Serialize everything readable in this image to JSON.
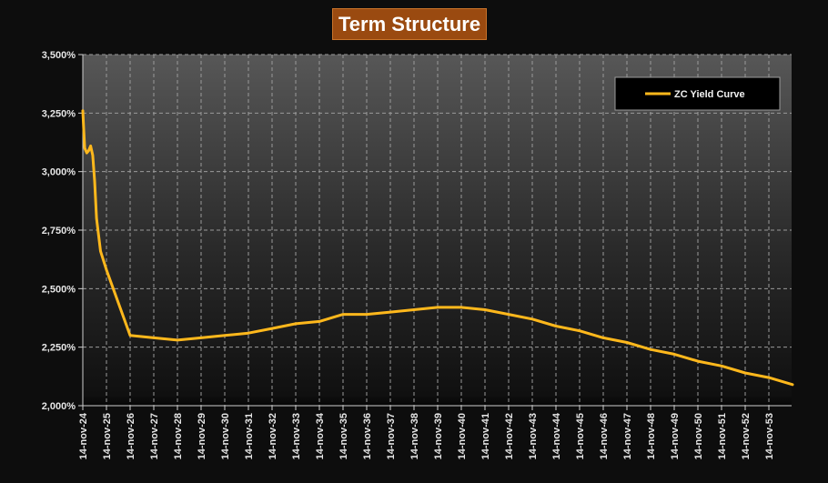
{
  "title": "Term Structure",
  "colors": {
    "series": "#ffb81c",
    "title_bg": "#9a4a10"
  },
  "chart_data": {
    "type": "line",
    "title": "Term Structure",
    "xlabel": "",
    "ylabel": "",
    "ylim": [
      0.02,
      0.035
    ],
    "y_ticks": [
      "2,000%",
      "2,250%",
      "2,500%",
      "2,750%",
      "3,000%",
      "3,250%",
      "3,500%"
    ],
    "x_ticks": [
      "14-nov-24",
      "14-nov-25",
      "14-nov-26",
      "14-nov-27",
      "14-nov-28",
      "14-nov-29",
      "14-nov-30",
      "14-nov-31",
      "14-nov-32",
      "14-nov-33",
      "14-nov-34",
      "14-nov-35",
      "14-nov-36",
      "14-nov-37",
      "14-nov-38",
      "14-nov-39",
      "14-nov-40",
      "14-nov-41",
      "14-nov-42",
      "14-nov-43",
      "14-nov-44",
      "14-nov-45",
      "14-nov-46",
      "14-nov-47",
      "14-nov-48",
      "14-nov-49",
      "14-nov-50",
      "14-nov-51",
      "14-nov-52",
      "14-nov-53"
    ],
    "grid": true,
    "legend_position": "top-right",
    "series": [
      {
        "name": "ZC Yield Curve",
        "x": [
          0,
          0.04,
          0.08,
          0.17,
          0.25,
          0.33,
          0.42,
          0.5,
          0.58,
          0.75,
          1.0,
          2.0,
          3.0,
          4.0,
          5.0,
          6.0,
          7.0,
          8.0,
          9.0,
          10.0,
          11.0,
          12.0,
          13.0,
          14.0,
          15.0,
          16.0,
          17.0,
          18.0,
          19.0,
          20.0,
          21.0,
          22.0,
          23.0,
          24.0,
          25.0,
          26.0,
          27.0,
          28.0,
          29.0,
          30.0
        ],
        "values": [
          0.0326,
          0.0318,
          0.031,
          0.0308,
          0.0309,
          0.0311,
          0.0307,
          0.0296,
          0.028,
          0.0266,
          0.0258,
          0.023,
          0.0229,
          0.0228,
          0.0229,
          0.023,
          0.0231,
          0.0233,
          0.0235,
          0.0236,
          0.0239,
          0.0239,
          0.024,
          0.0241,
          0.0242,
          0.0242,
          0.0241,
          0.0239,
          0.0237,
          0.0234,
          0.0232,
          0.0229,
          0.0227,
          0.0224,
          0.0222,
          0.0219,
          0.0217,
          0.0214,
          0.0212,
          0.0209
        ]
      }
    ]
  }
}
